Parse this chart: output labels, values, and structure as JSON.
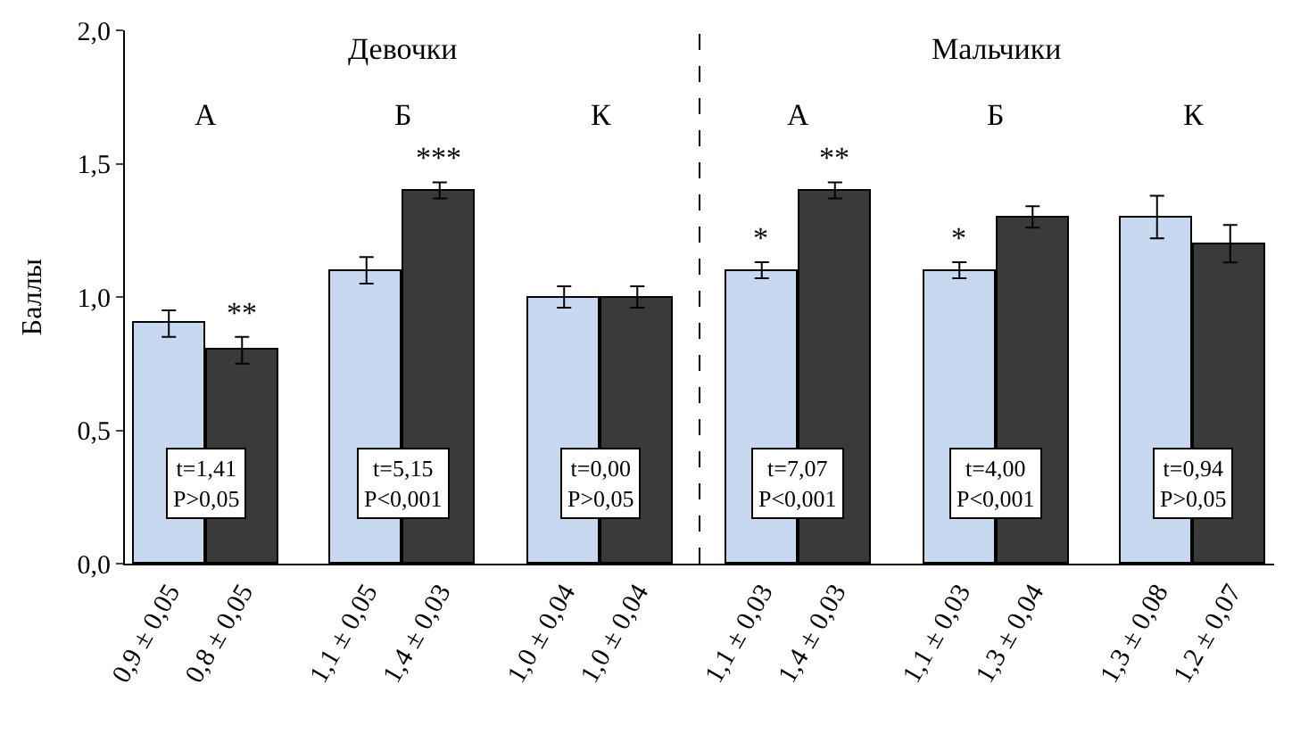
{
  "chart_data": {
    "type": "bar",
    "ylabel": "Баллы",
    "categories": [
      "0,9 ± 0,05",
      "0,8 ± 0,05",
      "1,1 ± 0,05",
      "1,4 ± 0,03",
      "1,0 ± 0,04",
      "1,0 ± 0,04",
      "1,1 ± 0,03",
      "1,4 ± 0,03",
      "1,1 ± 0,03",
      "1,3 ± 0,04",
      "1,3 ± 0,08",
      "1,2 ± 0,07"
    ],
    "values": [
      0.9,
      0.8,
      1.1,
      1.4,
      1.0,
      1.0,
      1.1,
      1.4,
      1.1,
      1.3,
      1.3,
      1.2
    ],
    "errors": [
      0.05,
      0.05,
      0.05,
      0.03,
      0.04,
      0.04,
      0.03,
      0.03,
      0.03,
      0.04,
      0.08,
      0.07
    ],
    "colors": [
      "#c6d9f1",
      "#3a3a3a",
      "#c6d9f1",
      "#3a3a3a",
      "#c6d9f1",
      "#3a3a3a",
      "#c6d9f1",
      "#3a3a3a",
      "#c6d9f1",
      "#3a3a3a",
      "#c6d9f1",
      "#3a3a3a"
    ],
    "ylim": [
      0,
      2.0
    ],
    "yticks": [
      {
        "value": 0,
        "label": "0,0"
      },
      {
        "value": 0.5,
        "label": "0,5"
      },
      {
        "value": 1.0,
        "label": "1,0"
      },
      {
        "value": 1.5,
        "label": "1,5"
      },
      {
        "value": 2.0,
        "label": "2,0"
      }
    ],
    "legend": false,
    "annotations": [
      "Девочки",
      "Мальчики",
      "А",
      "Б",
      "К",
      "А",
      "Б",
      "К",
      "t=1,41\nP>0,05",
      "t=5,15\nP<0,001",
      "t=0,00\nP>0,05",
      "t=7,07\nP<0,001",
      "t=4,00\nP<0,001",
      "t=0,94\nP>0,05",
      "**",
      "***",
      "*",
      "**",
      "*"
    ]
  }
}
